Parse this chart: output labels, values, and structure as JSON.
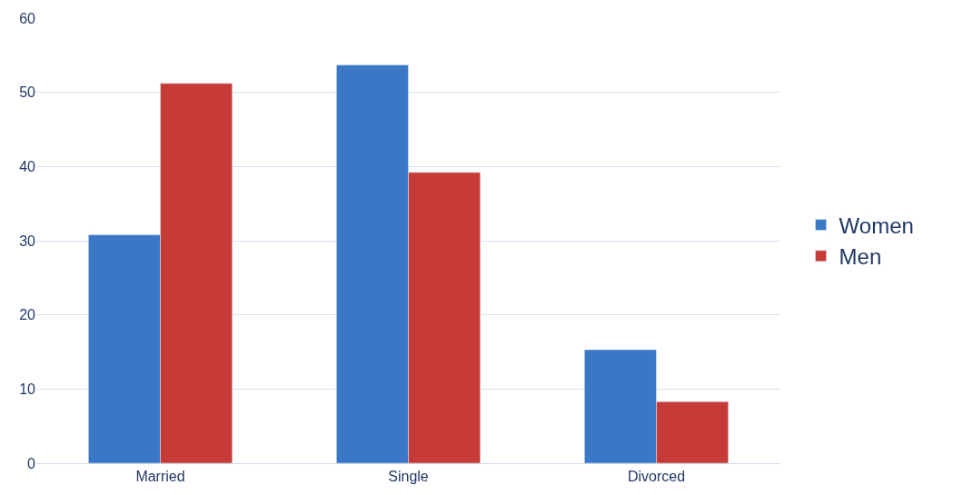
{
  "chart_data": {
    "type": "bar",
    "categories": [
      "Married",
      "Single",
      "Divorced"
    ],
    "series": [
      {
        "name": "Women",
        "color": "#3a78c6",
        "values": [
          30.8,
          53.7,
          15.3
        ]
      },
      {
        "name": "Men",
        "color": "#c63a38",
        "values": [
          51.2,
          39.2,
          8.3
        ]
      }
    ],
    "ylim": [
      0,
      60
    ],
    "yticks": [
      0,
      10,
      20,
      30,
      40,
      50,
      60
    ],
    "grid": "y",
    "legend": "right"
  }
}
